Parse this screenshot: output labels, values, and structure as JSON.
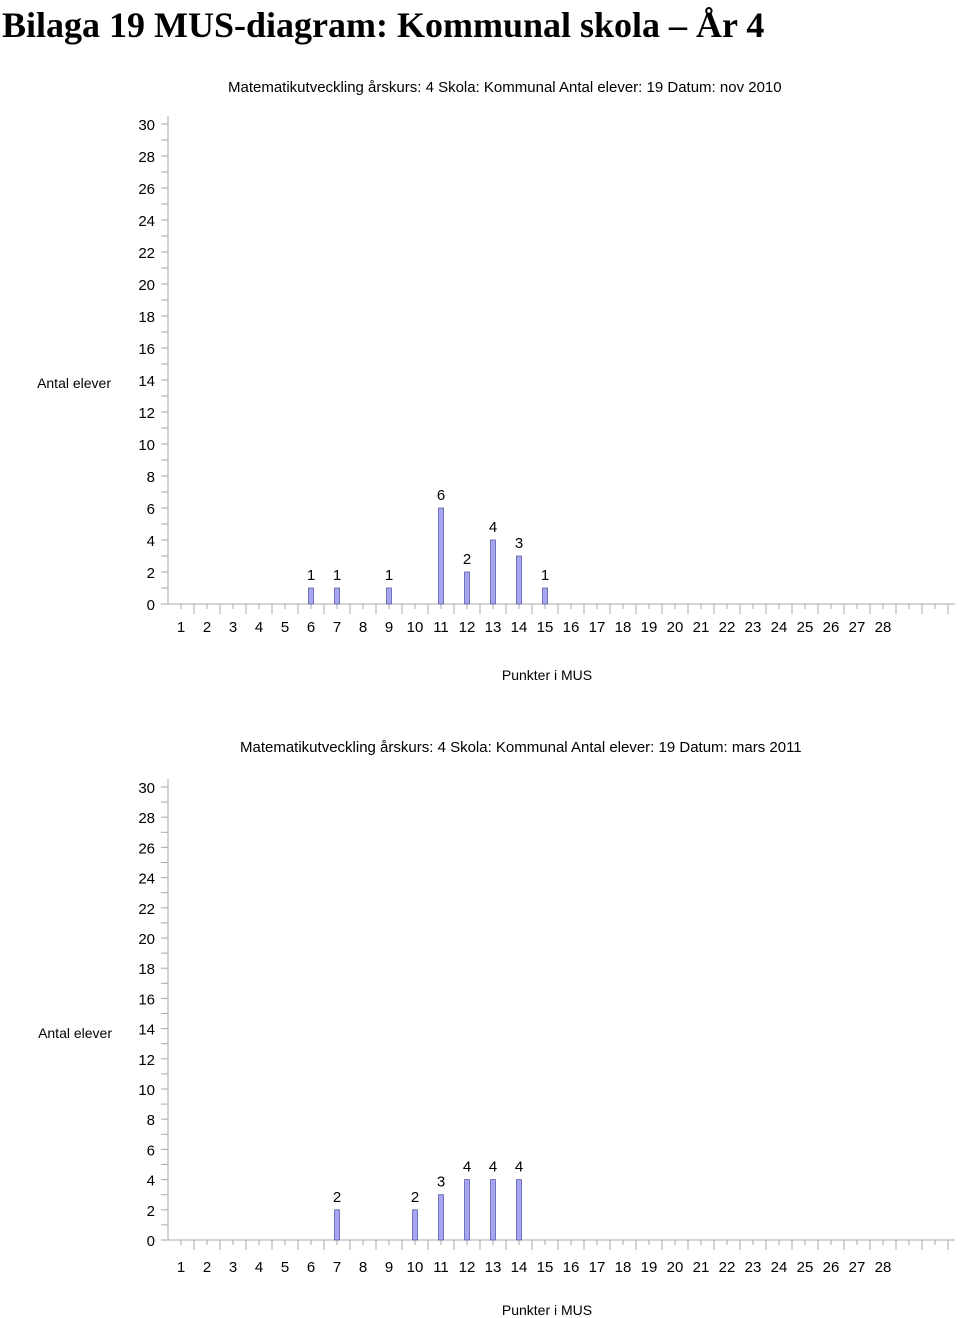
{
  "page_title": "Bilaga 19 MUS-diagram: Kommunal skola – År 4",
  "bar_color": "#a5a5f0",
  "bar_stroke": "#5a5aa8",
  "chart_data": [
    {
      "type": "bar",
      "header": "Matematikutveckling årskurs: 4   Skola: Kommunal       Antal elever: 19  Datum: nov 2010",
      "title": "",
      "xlabel": "Punkter i MUS",
      "ylabel": "Antal elever",
      "ylim": [
        0,
        30
      ],
      "yticks": [
        0,
        2,
        4,
        6,
        8,
        10,
        12,
        14,
        16,
        18,
        20,
        22,
        24,
        26,
        28,
        30
      ],
      "categories": [
        1,
        2,
        3,
        4,
        5,
        6,
        7,
        8,
        9,
        10,
        11,
        12,
        13,
        14,
        15,
        16,
        17,
        18,
        19,
        20,
        21,
        22,
        23,
        24,
        25,
        26,
        27,
        28
      ],
      "values": [
        null,
        null,
        null,
        null,
        null,
        1,
        1,
        null,
        1,
        null,
        6,
        2,
        4,
        3,
        1,
        null,
        null,
        null,
        null,
        null,
        null,
        null,
        null,
        null,
        null,
        null,
        null,
        null
      ]
    },
    {
      "type": "bar",
      "header": "Matematikutveckling årskurs: 4   Skola: Kommunal       Antal elever: 19  Datum: mars 2011",
      "title": "",
      "xlabel": "Punkter i MUS",
      "ylabel": "Antal elever",
      "ylim": [
        0,
        30
      ],
      "yticks": [
        0,
        2,
        4,
        6,
        8,
        10,
        12,
        14,
        16,
        18,
        20,
        22,
        24,
        26,
        28,
        30
      ],
      "categories": [
        1,
        2,
        3,
        4,
        5,
        6,
        7,
        8,
        9,
        10,
        11,
        12,
        13,
        14,
        15,
        16,
        17,
        18,
        19,
        20,
        21,
        22,
        23,
        24,
        25,
        26,
        27,
        28
      ],
      "values": [
        null,
        null,
        null,
        null,
        null,
        null,
        2,
        null,
        null,
        2,
        3,
        4,
        4,
        4,
        null,
        null,
        null,
        null,
        null,
        null,
        null,
        null,
        null,
        null,
        null,
        null,
        null,
        null
      ]
    }
  ]
}
